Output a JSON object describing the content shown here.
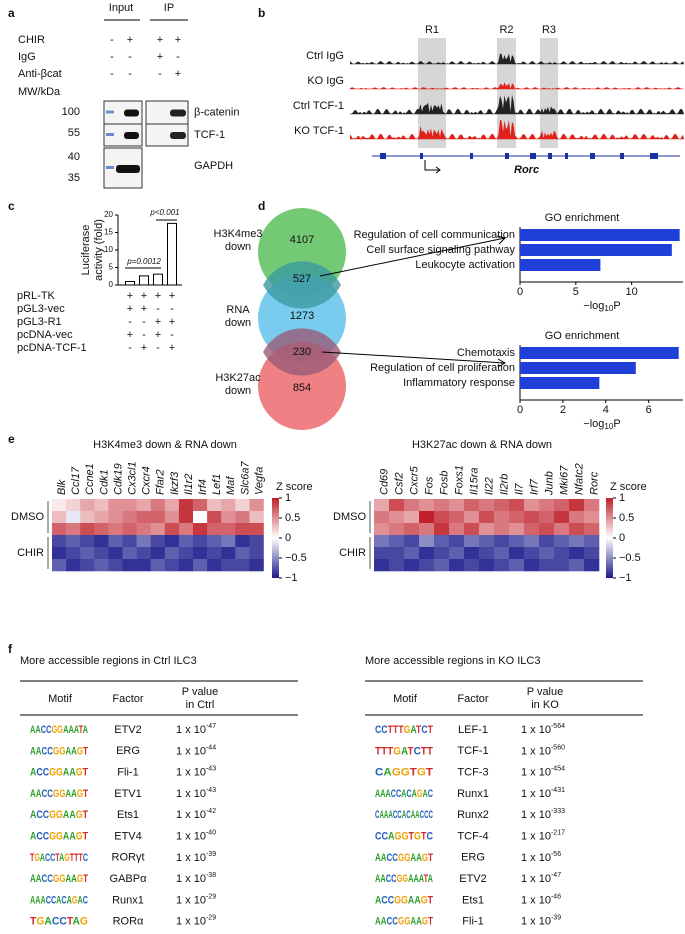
{
  "panel_labels": [
    "a",
    "b",
    "c",
    "d",
    "e",
    "f"
  ],
  "a": {
    "columns": [
      "Input",
      "IP"
    ],
    "rows": [
      {
        "label": "CHIR",
        "symbols": [
          "-",
          "+",
          "+",
          "+"
        ]
      },
      {
        "label": "IgG",
        "symbols": [
          "-",
          "-",
          "+",
          "-"
        ]
      },
      {
        "label": "Anti-βcat",
        "symbols": [
          "-",
          "-",
          "-",
          "+"
        ]
      }
    ],
    "mw_label": "MW/kDa",
    "mw": [
      100,
      55,
      40,
      35
    ],
    "blots": [
      "β-catenin",
      "TCF-1",
      "GAPDH"
    ]
  },
  "b": {
    "tracks": [
      "Ctrl IgG",
      "KO IgG",
      "Ctrl TCF-1",
      "KO TCF-1"
    ],
    "regions": [
      "R1",
      "R2",
      "R3"
    ],
    "gene": "Rorc"
  },
  "venn": {
    "sets": [
      {
        "label": [
          "H3K4me3",
          "down"
        ],
        "color": "#5cc15c"
      },
      {
        "label": [
          "RNA",
          "down"
        ],
        "color": "#62c3ea"
      },
      {
        "label": [
          "H3K27ac",
          "down"
        ],
        "color": "#ec6a6f"
      }
    ],
    "counts": [
      4107,
      527,
      1273,
      230,
      854
    ]
  },
  "chart_data": [
    {
      "type": "bar",
      "ylabel": [
        "Luciferase",
        "activity (fold)"
      ],
      "values": [
        1,
        2.6,
        3.1,
        17.6
      ],
      "color": "#ffffff",
      "ylim": [
        0,
        20
      ],
      "yticks": [
        0,
        5,
        10,
        15,
        20
      ],
      "annotations": [
        "p=0.0012",
        "p<0.001"
      ],
      "conditions": [
        {
          "label": "pRL-TK",
          "symbols": [
            "+",
            "+",
            "+",
            "+"
          ]
        },
        {
          "label": "pGL3-vec",
          "symbols": [
            "+",
            "+",
            "-",
            "-"
          ]
        },
        {
          "label": "pGL3-R1",
          "symbols": [
            "-",
            "-",
            "+",
            "+"
          ]
        },
        {
          "label": "pcDNA-vec",
          "symbols": [
            "+",
            "-",
            "+",
            "-"
          ]
        },
        {
          "label": "pcDNA-TCF-1",
          "symbols": [
            "-",
            "+",
            "-",
            "+"
          ]
        }
      ]
    },
    {
      "type": "hbar",
      "title": "GO enrichment",
      "categories": [
        "Regulation of cell communication",
        "Cell surface signaling pathway",
        "Leukocyte activation"
      ],
      "values": [
        14.3,
        13.6,
        7.2
      ],
      "color": "#1f3fd8",
      "xlim": [
        0,
        14.6
      ],
      "xticks": [
        0,
        5,
        10
      ],
      "xlabel": [
        "−log",
        "10",
        "P"
      ]
    },
    {
      "type": "hbar",
      "title": "GO enrichment",
      "categories": [
        "Chemotaxis",
        "Regulation of cell proliferation",
        "Inflammatory response"
      ],
      "values": [
        7.4,
        5.4,
        3.7
      ],
      "color": "#1f3fd8",
      "xlim": [
        0,
        7.6
      ],
      "xticks": [
        0,
        2,
        4,
        6
      ],
      "xlabel": [
        "−log",
        "10",
        "P"
      ]
    },
    {
      "type": "heatmap",
      "title": "H3K4me3 down & RNA down",
      "columns": [
        "Blk",
        "Ccl17",
        "Ccne1",
        "Cdk1",
        "Cdk19",
        "Cx3cl1",
        "Cxcr4",
        "Ffar2",
        "Ikzf3",
        "Il1r2",
        "Irf4",
        "Lef1",
        "Maf",
        "Slc6a7",
        "Vegfa"
      ],
      "groups": [
        "DMSO",
        "CHIR"
      ],
      "values": [
        [
          0.1,
          0.2,
          0.4,
          0.3,
          0.5,
          0.5,
          0.4,
          0.6,
          0.4,
          0.9,
          0.7,
          0.3,
          0.4,
          0.2,
          0.5
        ],
        [
          0.3,
          -0.1,
          0.3,
          0.4,
          0.5,
          0.6,
          0.7,
          0.7,
          0.5,
          0.9,
          0.0,
          0.8,
          0.5,
          0.6,
          0.3
        ],
        [
          0.7,
          0.6,
          0.8,
          0.7,
          0.6,
          0.7,
          0.6,
          0.5,
          0.8,
          0.6,
          0.9,
          0.7,
          0.7,
          0.8,
          0.8
        ],
        [
          -0.8,
          -0.7,
          -0.8,
          -0.9,
          -0.7,
          -0.8,
          -0.6,
          -0.8,
          -0.9,
          -0.7,
          -0.8,
          -0.7,
          -0.6,
          -0.9,
          -0.8
        ],
        [
          -0.9,
          -0.8,
          -0.7,
          -0.8,
          -0.9,
          -0.7,
          -0.8,
          -0.9,
          -0.7,
          -0.8,
          -0.9,
          -0.8,
          -0.9,
          -0.7,
          -0.8
        ],
        [
          -0.7,
          -0.9,
          -0.8,
          -0.7,
          -0.8,
          -0.9,
          -0.9,
          -0.7,
          -0.8,
          -0.9,
          -0.7,
          -0.9,
          -0.8,
          -0.8,
          -0.9
        ]
      ],
      "colorbar_label": "Z score",
      "cticks": [
        1,
        0.5,
        0,
        {
          "value": -0.5,
          "label": "−0.5"
        },
        {
          "value": -1,
          "label": "−1"
        }
      ],
      "clim": [
        -1,
        1
      ]
    },
    {
      "type": "heatmap",
      "title": "H3K27ac down & RNA down",
      "columns": [
        "Cd69",
        "Csf2",
        "Cxcr5",
        "Fos",
        "Fosb",
        "Foxs1",
        "Il15ra",
        "Il22",
        "Il2rb",
        "Il7",
        "Irf7",
        "Junb",
        "Mki67",
        "Nfatc2",
        "Rorc"
      ],
      "groups": [
        "DMSO",
        "CHIR"
      ],
      "values": [
        [
          0.4,
          0.8,
          0.6,
          0.5,
          0.6,
          0.5,
          0.7,
          0.6,
          0.7,
          0.8,
          0.5,
          0.6,
          0.7,
          0.9,
          0.6
        ],
        [
          0.6,
          0.5,
          0.4,
          1.0,
          0.8,
          0.7,
          0.5,
          0.8,
          0.6,
          0.7,
          0.8,
          0.7,
          0.9,
          0.6,
          0.5
        ],
        [
          0.5,
          0.6,
          0.7,
          0.6,
          0.9,
          0.6,
          0.8,
          0.5,
          0.6,
          0.5,
          0.7,
          0.8,
          0.6,
          0.8,
          0.7
        ],
        [
          -0.6,
          -0.7,
          -0.8,
          -0.5,
          -0.7,
          -0.8,
          -0.6,
          -0.7,
          -0.8,
          -0.7,
          -0.6,
          -0.8,
          -0.7,
          -0.6,
          -0.7
        ],
        [
          -0.8,
          -0.8,
          -0.7,
          -0.9,
          -0.8,
          -0.7,
          -0.9,
          -0.8,
          -0.7,
          -0.9,
          -0.8,
          -0.7,
          -0.8,
          -0.9,
          -0.8
        ],
        [
          -0.9,
          -0.8,
          -0.9,
          -0.8,
          -0.7,
          -0.9,
          -0.8,
          -0.9,
          -0.8,
          -0.7,
          -0.9,
          -0.8,
          -0.8,
          -0.7,
          -0.9
        ]
      ],
      "colorbar_label": "Z score",
      "cticks": [
        1,
        0.5,
        0,
        {
          "value": -0.5,
          "label": "−0.5"
        },
        {
          "value": -1,
          "label": "−1"
        }
      ],
      "clim": [
        -1,
        1
      ]
    }
  ],
  "tables": [
    {
      "title": "More accessible regions in Ctrl ILC3",
      "headers": [
        "Motif",
        "Factor",
        [
          "P value",
          "in Ctrl"
        ]
      ],
      "rows": [
        {
          "motif": "AACCGGAAATA",
          "factor": "ETV2",
          "p": "1 x 10",
          "exp": "-47"
        },
        {
          "motif": "AACCGGAAGT",
          "factor": "ERG",
          "p": "1 x 10",
          "exp": "-44"
        },
        {
          "motif": "ACCGGAAGT",
          "factor": "Fli-1",
          "p": "1 x 10",
          "exp": "-43"
        },
        {
          "motif": "AACCGGAAGT",
          "factor": "ETV1",
          "p": "1 x 10",
          "exp": "-43"
        },
        {
          "motif": "ACCGGAAGT",
          "factor": "Ets1",
          "p": "1 x 10",
          "exp": "-42"
        },
        {
          "motif": "ACCGGAAGT",
          "factor": "ETV4",
          "p": "1 x 10",
          "exp": "-40"
        },
        {
          "motif": "TGACCTAGTTTC",
          "factor": "RORγt",
          "p": "1 x 10",
          "exp": "-39"
        },
        {
          "motif": "AACCGGAAGT",
          "factor": "GABPα",
          "p": "1 x 10",
          "exp": "-38"
        },
        {
          "motif": "AAACCACAGAC",
          "factor": "Runx1",
          "p": "1 x 10",
          "exp": "-29"
        },
        {
          "motif": "TGACCTAG",
          "factor": "RORα",
          "p": "1 x 10",
          "exp": "-29"
        }
      ]
    },
    {
      "title": "More accessible regions in KO ILC3",
      "headers": [
        "Motif",
        "Factor",
        [
          "P value",
          "in KO"
        ]
      ],
      "rows": [
        {
          "motif": "CCTTTGATCT",
          "factor": "LEF-1",
          "p": "1 x 10",
          "exp": "-564"
        },
        {
          "motif": "TTTGATCTT",
          "factor": "TCF-1",
          "p": "1 x 10",
          "exp": "-560"
        },
        {
          "motif": "CAGGTGT",
          "factor": "TCF-3",
          "p": "1 x 10",
          "exp": "-454"
        },
        {
          "motif": "AAACCACAGAC",
          "factor": "Runx1",
          "p": "1 x 10",
          "exp": "-431"
        },
        {
          "motif": "CAAACCACAACCC",
          "factor": "Runx2",
          "p": "1 x 10",
          "exp": "-333"
        },
        {
          "motif": "CCAGGTGTC",
          "factor": "TCF-4",
          "p": "1 x 10",
          "exp": "-217"
        },
        {
          "motif": "AACCGGAAGT",
          "factor": "ERG",
          "p": "1 x 10",
          "exp": "-56"
        },
        {
          "motif": "AACCGGAAATA",
          "factor": "ETV2",
          "p": "1 x 10",
          "exp": "-47"
        },
        {
          "motif": "ACCGGAAGT",
          "factor": "Ets1",
          "p": "1 x 10",
          "exp": "-46"
        },
        {
          "motif": "AACCGGAAGT",
          "factor": "Fli-1",
          "p": "1 x 10",
          "exp": "-39"
        }
      ]
    }
  ]
}
